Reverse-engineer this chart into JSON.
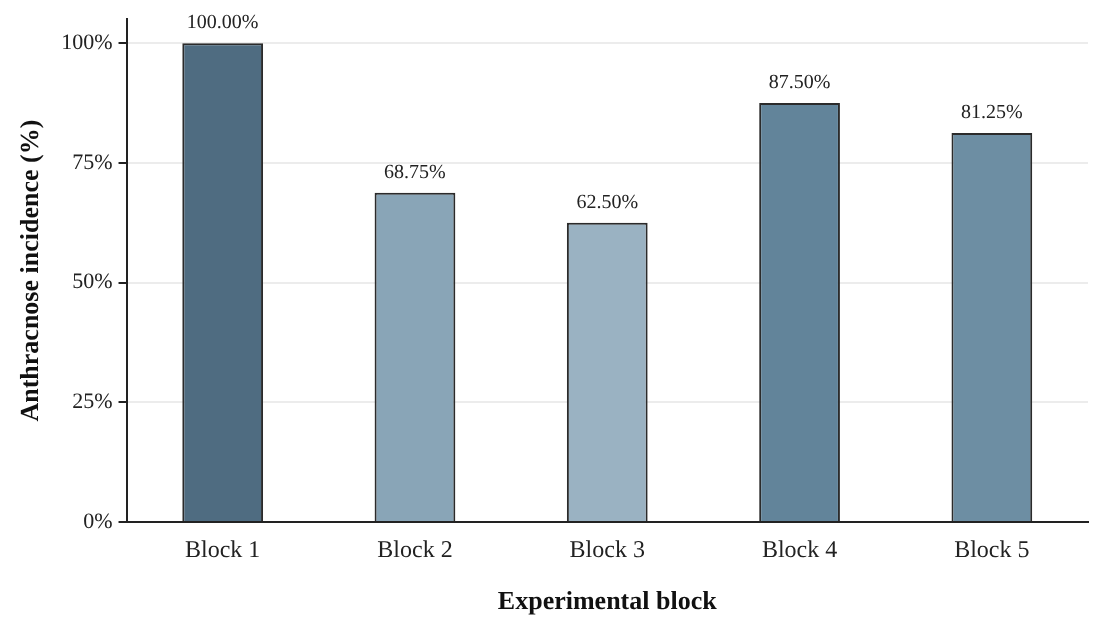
{
  "chart_data": {
    "type": "bar",
    "xlabel": "Experimental block",
    "ylabel": "Anthracnose incidence (%)",
    "categories": [
      "Block 1",
      "Block 2",
      "Block 3",
      "Block 4",
      "Block 5"
    ],
    "values": [
      100,
      68.75,
      62.5,
      87.5,
      81.25
    ],
    "colors": [
      "#4f6c81",
      "#89a5b7",
      "#9ab2c2",
      "#62849a",
      "#6d8ea3"
    ],
    "value_labels": [
      "100.00%",
      "68.75%",
      "62.50%",
      "87.50%",
      "81.25%"
    ],
    "ylim": [
      0,
      105
    ],
    "yticks": [
      {
        "value": 0,
        "label": "0%"
      },
      {
        "value": 25,
        "label": "25%"
      },
      {
        "value": 50,
        "label": "50%"
      },
      {
        "value": 75,
        "label": "75%"
      },
      {
        "value": 100,
        "label": "100%"
      }
    ],
    "grid": "y"
  }
}
